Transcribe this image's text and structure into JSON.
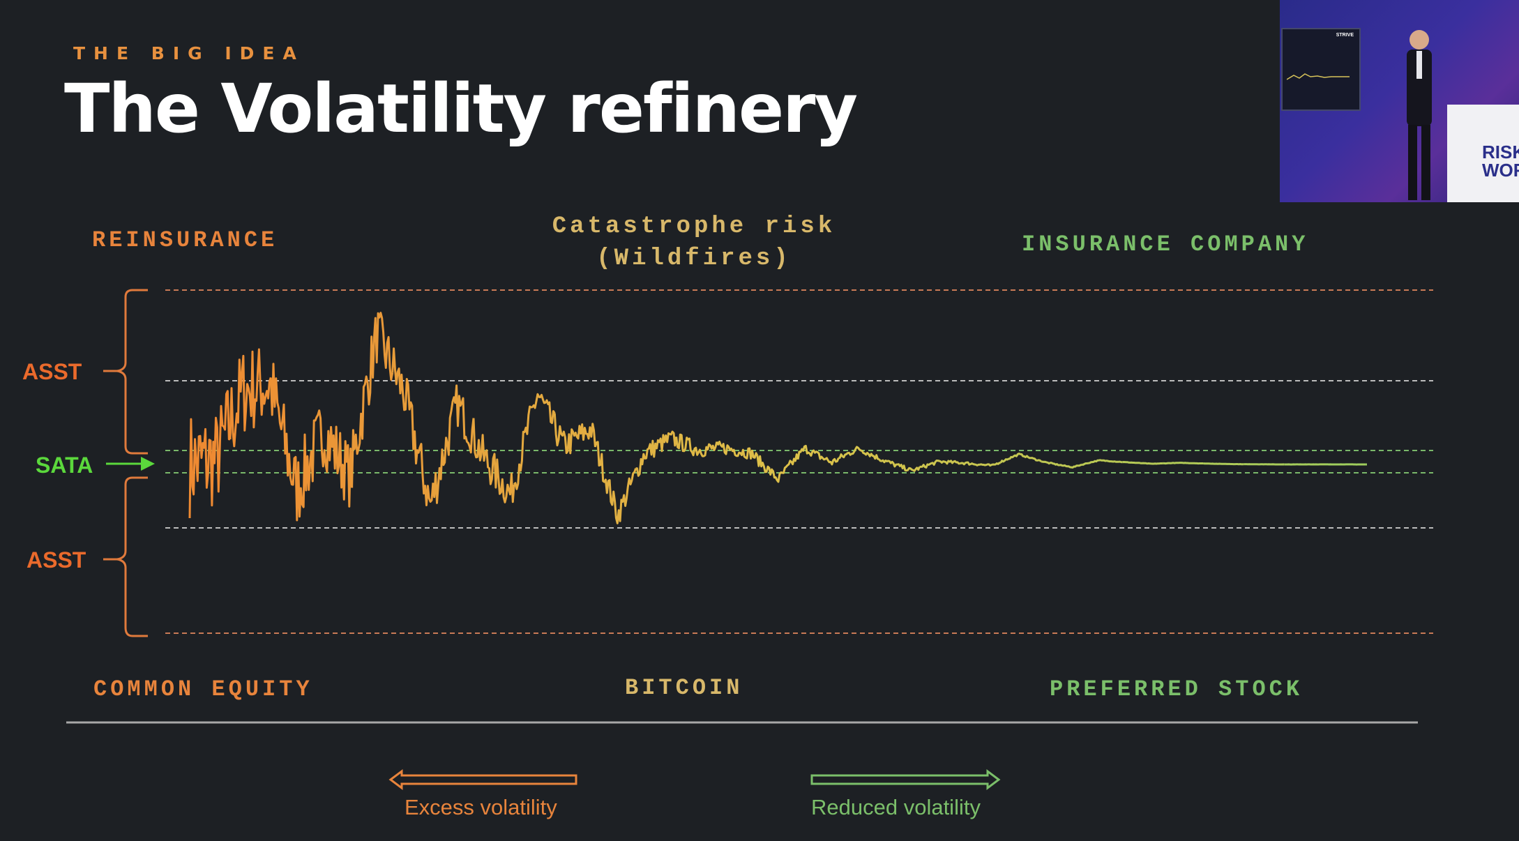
{
  "slide": {
    "kicker": "THE BIG IDEA",
    "title": "The Volatility refinery"
  },
  "labels": {
    "reinsurance": "REINSURANCE",
    "catastrophe": "Catastrophe risk\n(Wildfires)",
    "insurance": "INSURANCE COMPANY",
    "common_equity": "COMMON EQUITY",
    "bitcoin": "BITCOIN",
    "preferred": "PREFERRED STOCK"
  },
  "side_labels": {
    "asst_top": "ASST",
    "sata": "SATA",
    "asst_bottom": "ASST"
  },
  "legend": {
    "excess": "Excess volatility",
    "reduced": "Reduced volatility"
  },
  "inset": {
    "screen_brand": "STRIVE",
    "podium_logo": "RISK\nWOR"
  },
  "colors": {
    "orange": "#ee8a32",
    "yellow": "#dcc24a",
    "green": "#9ccf5e",
    "bright_green": "#5bd83c",
    "background": "#1d2024"
  },
  "chart_data": {
    "type": "line",
    "series": [
      {
        "values": [
          0,
          0.1,
          1.6,
          1.8,
          -0.6,
          0.8,
          -0.3,
          3.3,
          1.9,
          -1.1,
          1.7,
          0.2,
          -0.9,
          2.2,
          0.6,
          1.2,
          -1.8,
          0.4,
          1.0,
          0.6,
          0.7,
          0.5,
          -0.7,
          0.8,
          0.1,
          0.9,
          0.2,
          -0.4,
          0.2,
          0.1,
          -0.1,
          0.9,
          0.2,
          -0.3,
          0.5,
          0.3,
          0.1,
          0.3,
          0.2,
          0.1,
          0.05,
          0,
          0.02,
          0.01,
          0
        ]
      }
    ]
  }
}
